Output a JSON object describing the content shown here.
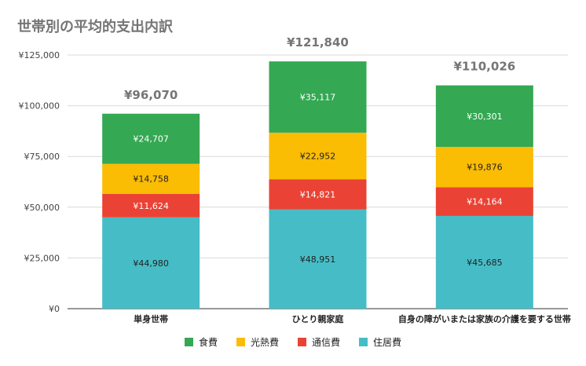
{
  "chart_data": {
    "type": "bar",
    "stacked": true,
    "title": "世帯別の平均的支出内訳",
    "categories": [
      "単身世帯",
      "ひとり親家庭",
      "自身の障がいまたは家族の介護を要する世帯"
    ],
    "series": [
      {
        "name": "住居費",
        "color": "#46bdc6",
        "values": [
          44980,
          48951,
          45685
        ],
        "labels": [
          "¥44,980",
          "¥48,951",
          "¥45,685"
        ]
      },
      {
        "name": "通信費",
        "color": "#ea4335",
        "values": [
          11624,
          14821,
          14164
        ],
        "labels": [
          "¥11,624",
          "¥14,821",
          "¥14,164"
        ]
      },
      {
        "name": "光熱費",
        "color": "#fbbc04",
        "values": [
          14758,
          22952,
          19876
        ],
        "labels": [
          "¥14,758",
          "¥22,952",
          "¥19,876"
        ]
      },
      {
        "name": "食費",
        "color": "#34a853",
        "values": [
          24707,
          35117,
          30301
        ],
        "labels": [
          "¥24,707",
          "¥35,117",
          "¥30,301"
        ]
      }
    ],
    "totals": [
      "¥96,070",
      "¥121,840",
      "¥110,026"
    ],
    "ylim": [
      0,
      125000
    ],
    "yticks": [
      0,
      25000,
      50000,
      75000,
      100000,
      125000
    ],
    "ytick_labels": [
      "¥0",
      "¥25,000",
      "¥50,000",
      "¥75,000",
      "¥100,000",
      "¥125,000"
    ],
    "legend": {
      "position": "bottom",
      "items": [
        {
          "name": "食費",
          "color": "#34a853"
        },
        {
          "name": "光熱費",
          "color": "#fbbc04"
        },
        {
          "name": "通信費",
          "color": "#ea4335"
        },
        {
          "name": "住居費",
          "color": "#46bdc6"
        }
      ]
    },
    "grid": true
  }
}
